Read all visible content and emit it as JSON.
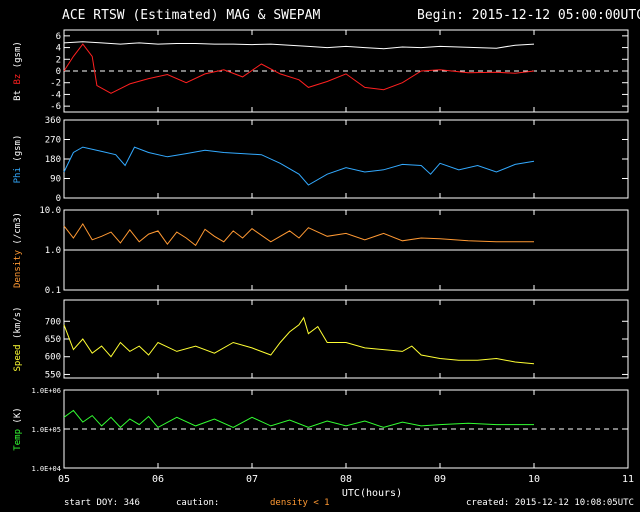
{
  "header": {
    "title": "ACE RTSW (Estimated) MAG & SWEPAM",
    "begin": "Begin: 2015-12-12 05:00:00UTC"
  },
  "footer": {
    "start_doy": "start DOY: 346",
    "caution": "caution:",
    "density_note": "density < 1",
    "created": "created: 2015-12-12 10:08:05UTC"
  },
  "colors": {
    "bt": "#ffffff",
    "bz": "#ff2020",
    "phi": "#33aaff",
    "density": "#ff9933",
    "speed": "#ffff33",
    "temp": "#33ff33",
    "axes": "#ffffff",
    "background": "#000000"
  },
  "chart_data": [
    {
      "type": "line",
      "panel": "mag",
      "ylabel_parts": [
        {
          "text": "Bt",
          "color": "#ffffff"
        },
        {
          "text": "Bz",
          "color": "#ff2020"
        },
        {
          "text": "(gsm)",
          "color": "#ffffff"
        }
      ],
      "ylim": [
        -7,
        7
      ],
      "yticks": [
        6,
        4,
        2,
        0,
        -2,
        -4,
        -6
      ],
      "ytick_labels": [
        "6",
        "4",
        "2",
        "0",
        "-2",
        "-4",
        "-6"
      ],
      "ref_line": 0,
      "series": [
        {
          "key": "bt",
          "color": "#ffffff",
          "points": [
            [
              5.0,
              4.8
            ],
            [
              5.2,
              5.0
            ],
            [
              5.4,
              4.8
            ],
            [
              5.6,
              4.6
            ],
            [
              5.8,
              4.8
            ],
            [
              6.0,
              4.6
            ],
            [
              6.2,
              4.7
            ],
            [
              6.4,
              4.7
            ],
            [
              6.6,
              4.6
            ],
            [
              6.8,
              4.6
            ],
            [
              7.0,
              4.5
            ],
            [
              7.2,
              4.6
            ],
            [
              7.4,
              4.4
            ],
            [
              7.6,
              4.2
            ],
            [
              7.8,
              4.0
            ],
            [
              8.0,
              4.2
            ],
            [
              8.2,
              4.0
            ],
            [
              8.4,
              3.8
            ],
            [
              8.6,
              4.1
            ],
            [
              8.8,
              4.0
            ],
            [
              9.0,
              4.2
            ],
            [
              9.2,
              4.1
            ],
            [
              9.4,
              4.0
            ],
            [
              9.6,
              3.9
            ],
            [
              9.8,
              4.4
            ],
            [
              10.0,
              4.6
            ]
          ]
        },
        {
          "key": "bz",
          "color": "#ff2020",
          "points": [
            [
              5.0,
              0.0
            ],
            [
              5.1,
              2.5
            ],
            [
              5.2,
              4.6
            ],
            [
              5.3,
              2.5
            ],
            [
              5.35,
              -2.5
            ],
            [
              5.5,
              -3.8
            ],
            [
              5.7,
              -2.2
            ],
            [
              5.9,
              -1.3
            ],
            [
              6.1,
              -0.6
            ],
            [
              6.3,
              -2.0
            ],
            [
              6.5,
              -0.5
            ],
            [
              6.7,
              0.2
            ],
            [
              6.9,
              -1.0
            ],
            [
              7.1,
              1.2
            ],
            [
              7.3,
              -0.5
            ],
            [
              7.5,
              -1.5
            ],
            [
              7.6,
              -2.8
            ],
            [
              7.8,
              -1.8
            ],
            [
              8.0,
              -0.5
            ],
            [
              8.2,
              -2.8
            ],
            [
              8.4,
              -3.2
            ],
            [
              8.6,
              -2.0
            ],
            [
              8.8,
              0.0
            ],
            [
              9.0,
              0.2
            ],
            [
              9.3,
              -0.3
            ],
            [
              9.6,
              -0.2
            ],
            [
              9.8,
              -0.4
            ],
            [
              10.0,
              0.0
            ]
          ]
        }
      ]
    },
    {
      "type": "line",
      "panel": "phi",
      "ylabel_parts": [
        {
          "text": "Phi",
          "color": "#33aaff"
        },
        {
          "text": "(gsm)",
          "color": "#ffffff"
        }
      ],
      "ylim": [
        0,
        360
      ],
      "yticks": [
        360,
        270,
        180,
        90,
        0
      ],
      "ytick_labels": [
        "360",
        "270",
        "180",
        "90",
        "0"
      ],
      "series": [
        {
          "key": "phi",
          "color": "#33aaff",
          "points": [
            [
              5.0,
              120
            ],
            [
              5.1,
              210
            ],
            [
              5.2,
              235
            ],
            [
              5.4,
              215
            ],
            [
              5.55,
              200
            ],
            [
              5.65,
              150
            ],
            [
              5.75,
              235
            ],
            [
              5.9,
              210
            ],
            [
              6.1,
              190
            ],
            [
              6.3,
              205
            ],
            [
              6.5,
              220
            ],
            [
              6.7,
              210
            ],
            [
              6.9,
              205
            ],
            [
              7.1,
              200
            ],
            [
              7.3,
              160
            ],
            [
              7.5,
              110
            ],
            [
              7.6,
              60
            ],
            [
              7.8,
              110
            ],
            [
              8.0,
              140
            ],
            [
              8.2,
              120
            ],
            [
              8.4,
              130
            ],
            [
              8.6,
              155
            ],
            [
              8.8,
              150
            ],
            [
              8.9,
              110
            ],
            [
              9.0,
              160
            ],
            [
              9.2,
              130
            ],
            [
              9.4,
              150
            ],
            [
              9.6,
              120
            ],
            [
              9.8,
              155
            ],
            [
              10.0,
              170
            ]
          ]
        }
      ]
    },
    {
      "type": "line",
      "panel": "density",
      "log": true,
      "ylabel_parts": [
        {
          "text": "Density",
          "color": "#ff9933"
        },
        {
          "text": "(/cm3)",
          "color": "#ffffff"
        }
      ],
      "ylim": [
        0.1,
        10
      ],
      "yticks": [
        10,
        1,
        0.1
      ],
      "ytick_labels": [
        "10.0",
        "1.0",
        "0.1"
      ],
      "ref_line": 1,
      "series": [
        {
          "key": "density",
          "color": "#ff9933",
          "points": [
            [
              5.0,
              4.0
            ],
            [
              5.1,
              2.0
            ],
            [
              5.2,
              4.5
            ],
            [
              5.3,
              1.8
            ],
            [
              5.4,
              2.2
            ],
            [
              5.5,
              2.8
            ],
            [
              5.6,
              1.5
            ],
            [
              5.7,
              3.2
            ],
            [
              5.8,
              1.6
            ],
            [
              5.9,
              2.5
            ],
            [
              6.0,
              3.0
            ],
            [
              6.1,
              1.4
            ],
            [
              6.2,
              2.8
            ],
            [
              6.3,
              2.0
            ],
            [
              6.4,
              1.3
            ],
            [
              6.5,
              3.3
            ],
            [
              6.6,
              2.2
            ],
            [
              6.7,
              1.6
            ],
            [
              6.8,
              3.0
            ],
            [
              6.9,
              2.0
            ],
            [
              7.0,
              3.4
            ],
            [
              7.2,
              1.6
            ],
            [
              7.4,
              3.0
            ],
            [
              7.5,
              2.0
            ],
            [
              7.6,
              3.6
            ],
            [
              7.8,
              2.2
            ],
            [
              8.0,
              2.6
            ],
            [
              8.2,
              1.8
            ],
            [
              8.4,
              2.6
            ],
            [
              8.6,
              1.7
            ],
            [
              8.8,
              2.0
            ],
            [
              9.0,
              1.9
            ],
            [
              9.3,
              1.7
            ],
            [
              9.6,
              1.6
            ],
            [
              10.0,
              1.6
            ]
          ]
        }
      ]
    },
    {
      "type": "line",
      "panel": "speed",
      "ylabel_parts": [
        {
          "text": "Speed",
          "color": "#ffff33"
        },
        {
          "text": "(km/s)",
          "color": "#ffffff"
        }
      ],
      "ylim": [
        540,
        760
      ],
      "yticks": [
        700,
        650,
        600,
        550
      ],
      "ytick_labels": [
        "700",
        "650",
        "600",
        "550"
      ],
      "series": [
        {
          "key": "speed",
          "color": "#ffff33",
          "points": [
            [
              5.0,
              690
            ],
            [
              5.1,
              620
            ],
            [
              5.2,
              650
            ],
            [
              5.3,
              610
            ],
            [
              5.4,
              630
            ],
            [
              5.5,
              600
            ],
            [
              5.6,
              640
            ],
            [
              5.7,
              615
            ],
            [
              5.8,
              630
            ],
            [
              5.9,
              605
            ],
            [
              6.0,
              640
            ],
            [
              6.2,
              615
            ],
            [
              6.4,
              630
            ],
            [
              6.6,
              610
            ],
            [
              6.8,
              640
            ],
            [
              7.0,
              625
            ],
            [
              7.2,
              605
            ],
            [
              7.3,
              640
            ],
            [
              7.4,
              670
            ],
            [
              7.5,
              690
            ],
            [
              7.55,
              710
            ],
            [
              7.6,
              665
            ],
            [
              7.7,
              685
            ],
            [
              7.8,
              640
            ],
            [
              8.0,
              640
            ],
            [
              8.2,
              625
            ],
            [
              8.4,
              620
            ],
            [
              8.6,
              615
            ],
            [
              8.7,
              630
            ],
            [
              8.8,
              605
            ],
            [
              9.0,
              595
            ],
            [
              9.2,
              590
            ],
            [
              9.4,
              590
            ],
            [
              9.6,
              595
            ],
            [
              9.8,
              585
            ],
            [
              10.0,
              580
            ]
          ]
        }
      ]
    },
    {
      "type": "line",
      "panel": "temp",
      "log": true,
      "ylabel_parts": [
        {
          "text": "Temp",
          "color": "#33ff33"
        },
        {
          "text": "(K)",
          "color": "#ffffff"
        }
      ],
      "ylim": [
        10000,
        1000000
      ],
      "yticks": [
        1000000,
        100000,
        10000
      ],
      "ytick_labels": [
        "1.0E+06",
        "1.0E+05",
        "1.0E+04"
      ],
      "ref_line": 100000,
      "series": [
        {
          "key": "temp",
          "color": "#33ff33",
          "points": [
            [
              5.0,
              200000
            ],
            [
              5.1,
              300000
            ],
            [
              5.2,
              150000
            ],
            [
              5.3,
              220000
            ],
            [
              5.4,
              120000
            ],
            [
              5.5,
              200000
            ],
            [
              5.6,
              110000
            ],
            [
              5.7,
              180000
            ],
            [
              5.8,
              130000
            ],
            [
              5.9,
              210000
            ],
            [
              6.0,
              110000
            ],
            [
              6.2,
              200000
            ],
            [
              6.4,
              120000
            ],
            [
              6.6,
              180000
            ],
            [
              6.8,
              110000
            ],
            [
              7.0,
              200000
            ],
            [
              7.2,
              120000
            ],
            [
              7.4,
              170000
            ],
            [
              7.6,
              110000
            ],
            [
              7.8,
              160000
            ],
            [
              8.0,
              120000
            ],
            [
              8.2,
              160000
            ],
            [
              8.4,
              110000
            ],
            [
              8.6,
              150000
            ],
            [
              8.8,
              120000
            ],
            [
              9.0,
              130000
            ],
            [
              9.3,
              140000
            ],
            [
              9.6,
              130000
            ],
            [
              10.0,
              130000
            ]
          ]
        }
      ]
    }
  ],
  "x_axis": {
    "xlabel": "UTC(hours)",
    "xlim": [
      5,
      11
    ],
    "ticks": [
      5,
      6,
      7,
      8,
      9,
      10,
      11
    ],
    "tick_labels": [
      "05",
      "06",
      "07",
      "08",
      "09",
      "10",
      "11"
    ]
  }
}
